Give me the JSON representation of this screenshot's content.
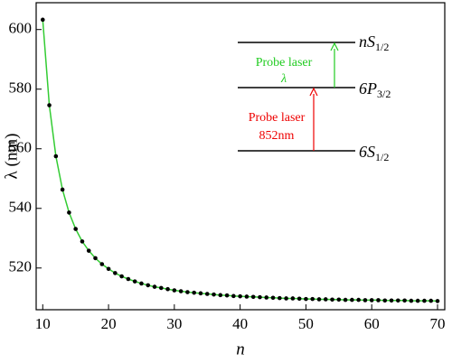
{
  "chart_data": {
    "type": "scatter",
    "x_label": "n",
    "y_label": "λ (nm)",
    "x": [
      10,
      11,
      12,
      13,
      14,
      15,
      16,
      17,
      18,
      19,
      20,
      21,
      22,
      23,
      24,
      25,
      26,
      27,
      28,
      29,
      30,
      31,
      32,
      33,
      34,
      35,
      36,
      37,
      38,
      39,
      40,
      41,
      42,
      43,
      44,
      45,
      46,
      47,
      48,
      49,
      50,
      51,
      52,
      53,
      54,
      55,
      56,
      57,
      58,
      59,
      60,
      61,
      62,
      63,
      64,
      65,
      66,
      67,
      68,
      69,
      70
    ],
    "series": [
      {
        "color": "#000000",
        "line_color": "#33cc33",
        "values": [
          603.3,
          574.6,
          557.5,
          546.3,
          538.6,
          533.1,
          528.9,
          525.8,
          523.3,
          521.3,
          519.7,
          518.3,
          517.2,
          516.3,
          515.5,
          514.8,
          514.2,
          513.7,
          513.3,
          512.9,
          512.5,
          512.2,
          511.9,
          511.7,
          511.5,
          511.3,
          511.1,
          510.9,
          510.8,
          510.6,
          510.5,
          510.4,
          510.3,
          510.2,
          510.1,
          510.0,
          509.9,
          509.8,
          509.8,
          509.7,
          509.6,
          509.6,
          509.5,
          509.5,
          509.4,
          509.4,
          509.3,
          509.3,
          509.3,
          509.2,
          509.2,
          509.2,
          509.1,
          509.1,
          509.1,
          509.1,
          509.0,
          509.0,
          509.0,
          509.0,
          508.9
        ]
      }
    ],
    "xlim": [
      9,
      71.1
    ],
    "ylim": [
      506,
      609
    ],
    "xticks": [
      10,
      20,
      30,
      40,
      50,
      60,
      70
    ],
    "yticks": [
      520,
      540,
      560,
      580,
      600
    ],
    "inset": {
      "levels": [
        {
          "main": "nS",
          "sub": "1/2"
        },
        {
          "main": "6P",
          "sub": "3/2"
        },
        {
          "main": "6S",
          "sub": "1/2"
        }
      ],
      "upper_laser": {
        "label": "Probe laser",
        "wavelength": "λ",
        "color": "#22cc22"
      },
      "lower_laser": {
        "label": "Probe laser",
        "wavelength": "852nm",
        "color": "#ee0000"
      }
    }
  }
}
